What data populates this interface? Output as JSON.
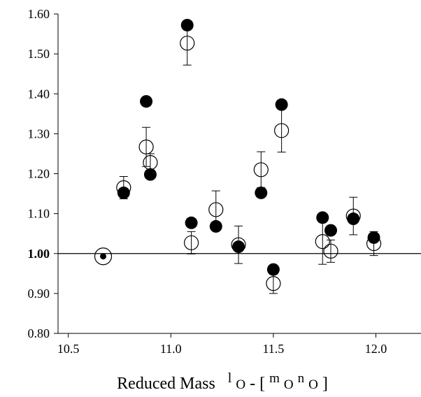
{
  "chart_data": {
    "type": "scatter",
    "title": "",
    "xlabel_parts": {
      "base": "Reduced Mass",
      "sup1": "l",
      "sub1": "O",
      "mid": " - [",
      "sup2": "m",
      "sub2": "O",
      "sup3": "n",
      "sub3": "O",
      "end": "]"
    },
    "ylabel": "",
    "xlim": [
      10.45,
      12.22
    ],
    "ylim": [
      0.8,
      1.6
    ],
    "x_ticks": [
      10.5,
      11.0,
      11.5,
      12.0
    ],
    "x_tick_labels": [
      "10.5",
      "11.0",
      "11.5",
      "12.0"
    ],
    "y_ticks": [
      0.8,
      0.9,
      1.0,
      1.1,
      1.2,
      1.3,
      1.4,
      1.5,
      1.6
    ],
    "y_tick_labels": [
      "0.80",
      "0.90",
      "1.00",
      "1.10",
      "1.20",
      "1.30",
      "1.40",
      "1.50",
      "1.60"
    ],
    "y_bold_tick": "1.00",
    "reference_line_y": 1.0,
    "grid": false,
    "legend": "none",
    "series": [
      {
        "style": "open-circle",
        "points": [
          {
            "x": 10.67,
            "y": 0.993,
            "err": null
          },
          {
            "x": 10.77,
            "y": 1.165,
            "err": 0.028
          },
          {
            "x": 10.88,
            "y": 1.267,
            "err": 0.049
          },
          {
            "x": 10.9,
            "y": 1.228,
            "err": 0.022
          },
          {
            "x": 11.08,
            "y": 1.527,
            "err": 0.055
          },
          {
            "x": 11.1,
            "y": 1.027,
            "err": 0.028
          },
          {
            "x": 11.22,
            "y": 1.11,
            "err": 0.047
          },
          {
            "x": 11.33,
            "y": 1.022,
            "err": 0.047
          },
          {
            "x": 11.44,
            "y": 1.21,
            "err": 0.045
          },
          {
            "x": 11.5,
            "y": 0.925,
            "err": 0.025
          },
          {
            "x": 11.54,
            "y": 1.308,
            "err": 0.054
          },
          {
            "x": 11.74,
            "y": 1.03,
            "err": 0.057
          },
          {
            "x": 11.78,
            "y": 1.006,
            "err": 0.028
          },
          {
            "x": 11.89,
            "y": 1.094,
            "err": 0.047
          },
          {
            "x": 11.99,
            "y": 1.025,
            "err": 0.03
          }
        ]
      },
      {
        "style": "filled-circle",
        "points": [
          {
            "x": 10.67,
            "y": 0.993
          },
          {
            "x": 10.77,
            "y": 1.152
          },
          {
            "x": 10.88,
            "y": 1.381
          },
          {
            "x": 10.9,
            "y": 1.198
          },
          {
            "x": 11.08,
            "y": 1.572
          },
          {
            "x": 11.1,
            "y": 1.077
          },
          {
            "x": 11.22,
            "y": 1.068
          },
          {
            "x": 11.33,
            "y": 1.017
          },
          {
            "x": 11.44,
            "y": 1.152
          },
          {
            "x": 11.5,
            "y": 0.96
          },
          {
            "x": 11.54,
            "y": 1.373
          },
          {
            "x": 11.74,
            "y": 1.09
          },
          {
            "x": 11.78,
            "y": 1.058
          },
          {
            "x": 11.89,
            "y": 1.087
          },
          {
            "x": 11.99,
            "y": 1.04
          }
        ]
      }
    ]
  }
}
